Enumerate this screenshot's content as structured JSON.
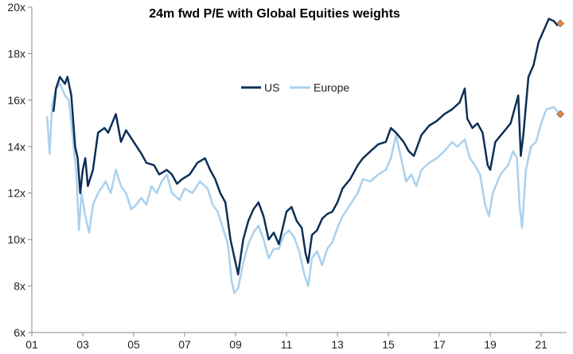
{
  "chart_data": {
    "type": "line",
    "title": "24m fwd P/E with Global Equities weights",
    "xlabel": "",
    "ylabel": "",
    "xlim": [
      2001,
      2022
    ],
    "ylim": [
      6,
      20
    ],
    "x_ticks": [
      2001,
      2003,
      2005,
      2007,
      2009,
      2011,
      2013,
      2015,
      2017,
      2019,
      2021
    ],
    "x_tick_labels": [
      "01",
      "03",
      "05",
      "07",
      "09",
      "11",
      "13",
      "15",
      "17",
      "19",
      "21"
    ],
    "y_ticks": [
      6,
      8,
      10,
      12,
      14,
      16,
      18,
      20
    ],
    "y_tick_labels": [
      "6x",
      "8x",
      "10x",
      "12x",
      "14x",
      "16x",
      "18x",
      "20x"
    ],
    "grid": false,
    "legend_position": "center",
    "series": [
      {
        "name": "US",
        "color": "#0d2f57",
        "points": [
          [
            2001.85,
            15.5
          ],
          [
            2001.95,
            16.5
          ],
          [
            2002.1,
            17.0
          ],
          [
            2002.3,
            16.7
          ],
          [
            2002.4,
            17.0
          ],
          [
            2002.55,
            16.2
          ],
          [
            2002.7,
            14.0
          ],
          [
            2002.8,
            13.5
          ],
          [
            2002.9,
            12.0
          ],
          [
            2003.0,
            13.0
          ],
          [
            2003.1,
            13.5
          ],
          [
            2003.2,
            12.3
          ],
          [
            2003.4,
            13.0
          ],
          [
            2003.6,
            14.6
          ],
          [
            2003.85,
            14.8
          ],
          [
            2004.0,
            14.6
          ],
          [
            2004.3,
            15.4
          ],
          [
            2004.5,
            14.2
          ],
          [
            2004.7,
            14.7
          ],
          [
            2005.0,
            14.2
          ],
          [
            2005.3,
            13.7
          ],
          [
            2005.5,
            13.3
          ],
          [
            2005.8,
            13.2
          ],
          [
            2006.0,
            12.8
          ],
          [
            2006.3,
            13.0
          ],
          [
            2006.5,
            12.8
          ],
          [
            2006.7,
            12.4
          ],
          [
            2006.9,
            12.6
          ],
          [
            2007.2,
            12.8
          ],
          [
            2007.5,
            13.3
          ],
          [
            2007.8,
            13.5
          ],
          [
            2008.0,
            13.0
          ],
          [
            2008.2,
            12.6
          ],
          [
            2008.4,
            12.0
          ],
          [
            2008.6,
            11.6
          ],
          [
            2008.8,
            10.0
          ],
          [
            2008.9,
            9.5
          ],
          [
            2009.1,
            8.5
          ],
          [
            2009.3,
            10.0
          ],
          [
            2009.5,
            10.8
          ],
          [
            2009.7,
            11.3
          ],
          [
            2009.9,
            11.6
          ],
          [
            2010.1,
            11.0
          ],
          [
            2010.3,
            10.0
          ],
          [
            2010.5,
            10.3
          ],
          [
            2010.7,
            9.8
          ],
          [
            2011.0,
            11.2
          ],
          [
            2011.2,
            11.4
          ],
          [
            2011.4,
            10.8
          ],
          [
            2011.6,
            10.5
          ],
          [
            2011.75,
            9.4
          ],
          [
            2011.85,
            9.0
          ],
          [
            2012.0,
            10.2
          ],
          [
            2012.2,
            10.4
          ],
          [
            2012.4,
            10.9
          ],
          [
            2012.6,
            11.1
          ],
          [
            2012.8,
            11.2
          ],
          [
            2013.0,
            11.6
          ],
          [
            2013.2,
            12.2
          ],
          [
            2013.5,
            12.6
          ],
          [
            2013.8,
            13.2
          ],
          [
            2014.0,
            13.5
          ],
          [
            2014.3,
            13.8
          ],
          [
            2014.6,
            14.1
          ],
          [
            2014.9,
            14.2
          ],
          [
            2015.1,
            14.8
          ],
          [
            2015.3,
            14.6
          ],
          [
            2015.6,
            14.2
          ],
          [
            2015.8,
            13.8
          ],
          [
            2016.0,
            13.6
          ],
          [
            2016.3,
            14.5
          ],
          [
            2016.6,
            14.9
          ],
          [
            2016.9,
            15.1
          ],
          [
            2017.2,
            15.4
          ],
          [
            2017.5,
            15.6
          ],
          [
            2017.8,
            15.9
          ],
          [
            2018.0,
            16.5
          ],
          [
            2018.1,
            15.2
          ],
          [
            2018.3,
            14.8
          ],
          [
            2018.5,
            15.0
          ],
          [
            2018.7,
            14.6
          ],
          [
            2018.9,
            13.2
          ],
          [
            2019.0,
            13.0
          ],
          [
            2019.2,
            14.2
          ],
          [
            2019.5,
            14.6
          ],
          [
            2019.8,
            15.0
          ],
          [
            2020.0,
            15.8
          ],
          [
            2020.1,
            16.2
          ],
          [
            2020.2,
            13.6
          ],
          [
            2020.3,
            14.5
          ],
          [
            2020.5,
            17.0
          ],
          [
            2020.7,
            17.5
          ],
          [
            2020.9,
            18.5
          ],
          [
            2021.1,
            19.0
          ],
          [
            2021.3,
            19.5
          ],
          [
            2021.5,
            19.4
          ],
          [
            2021.65,
            19.2
          ]
        ]
      },
      {
        "name": "Europe",
        "color": "#a9d1ee",
        "points": [
          [
            2001.6,
            15.3
          ],
          [
            2001.7,
            13.7
          ],
          [
            2001.8,
            15.8
          ],
          [
            2001.95,
            16.5
          ],
          [
            2002.1,
            16.7
          ],
          [
            2002.3,
            16.2
          ],
          [
            2002.45,
            16.0
          ],
          [
            2002.6,
            14.5
          ],
          [
            2002.75,
            12.8
          ],
          [
            2002.85,
            10.4
          ],
          [
            2002.95,
            12.0
          ],
          [
            2003.1,
            11.0
          ],
          [
            2003.25,
            10.3
          ],
          [
            2003.4,
            11.5
          ],
          [
            2003.6,
            12.0
          ],
          [
            2003.9,
            12.5
          ],
          [
            2004.1,
            12.0
          ],
          [
            2004.3,
            13.0
          ],
          [
            2004.5,
            12.3
          ],
          [
            2004.7,
            12.0
          ],
          [
            2004.9,
            11.3
          ],
          [
            2005.1,
            11.5
          ],
          [
            2005.3,
            11.8
          ],
          [
            2005.5,
            11.5
          ],
          [
            2005.7,
            12.3
          ],
          [
            2005.9,
            12.0
          ],
          [
            2006.1,
            12.5
          ],
          [
            2006.3,
            12.8
          ],
          [
            2006.5,
            12.0
          ],
          [
            2006.8,
            11.7
          ],
          [
            2007.0,
            12.2
          ],
          [
            2007.3,
            12.0
          ],
          [
            2007.6,
            12.5
          ],
          [
            2007.9,
            12.2
          ],
          [
            2008.1,
            11.5
          ],
          [
            2008.3,
            11.2
          ],
          [
            2008.5,
            10.5
          ],
          [
            2008.7,
            9.8
          ],
          [
            2008.85,
            8.2
          ],
          [
            2008.95,
            7.7
          ],
          [
            2009.1,
            7.9
          ],
          [
            2009.3,
            9.0
          ],
          [
            2009.5,
            9.8
          ],
          [
            2009.7,
            10.3
          ],
          [
            2009.9,
            10.6
          ],
          [
            2010.1,
            10.0
          ],
          [
            2010.3,
            9.2
          ],
          [
            2010.5,
            9.6
          ],
          [
            2010.7,
            9.6
          ],
          [
            2010.9,
            10.2
          ],
          [
            2011.1,
            10.4
          ],
          [
            2011.3,
            10.1
          ],
          [
            2011.5,
            9.5
          ],
          [
            2011.7,
            8.5
          ],
          [
            2011.85,
            8.0
          ],
          [
            2012.0,
            9.2
          ],
          [
            2012.2,
            9.5
          ],
          [
            2012.4,
            8.9
          ],
          [
            2012.6,
            9.6
          ],
          [
            2012.8,
            9.9
          ],
          [
            2013.0,
            10.5
          ],
          [
            2013.2,
            11.0
          ],
          [
            2013.5,
            11.5
          ],
          [
            2013.8,
            12.0
          ],
          [
            2014.0,
            12.6
          ],
          [
            2014.3,
            12.5
          ],
          [
            2014.6,
            12.8
          ],
          [
            2014.9,
            13.0
          ],
          [
            2015.1,
            13.5
          ],
          [
            2015.3,
            14.5
          ],
          [
            2015.5,
            13.5
          ],
          [
            2015.7,
            12.5
          ],
          [
            2015.9,
            12.8
          ],
          [
            2016.1,
            12.3
          ],
          [
            2016.3,
            13.0
          ],
          [
            2016.6,
            13.3
          ],
          [
            2016.9,
            13.5
          ],
          [
            2017.2,
            13.8
          ],
          [
            2017.5,
            14.2
          ],
          [
            2017.7,
            14.0
          ],
          [
            2018.0,
            14.3
          ],
          [
            2018.2,
            13.5
          ],
          [
            2018.4,
            13.2
          ],
          [
            2018.6,
            12.8
          ],
          [
            2018.8,
            11.5
          ],
          [
            2018.95,
            11.0
          ],
          [
            2019.1,
            12.0
          ],
          [
            2019.4,
            12.8
          ],
          [
            2019.7,
            13.2
          ],
          [
            2019.9,
            13.8
          ],
          [
            2020.05,
            13.5
          ],
          [
            2020.15,
            11.5
          ],
          [
            2020.25,
            10.5
          ],
          [
            2020.4,
            13.0
          ],
          [
            2020.6,
            14.0
          ],
          [
            2020.8,
            14.2
          ],
          [
            2021.0,
            15.0
          ],
          [
            2021.2,
            15.6
          ],
          [
            2021.5,
            15.7
          ],
          [
            2021.65,
            15.5
          ]
        ]
      }
    ],
    "markers": [
      {
        "series": "US",
        "x": 2021.75,
        "y": 19.3,
        "color": "#e8853c"
      },
      {
        "series": "Europe",
        "x": 2021.75,
        "y": 15.4,
        "color": "#e8853c"
      }
    ]
  }
}
